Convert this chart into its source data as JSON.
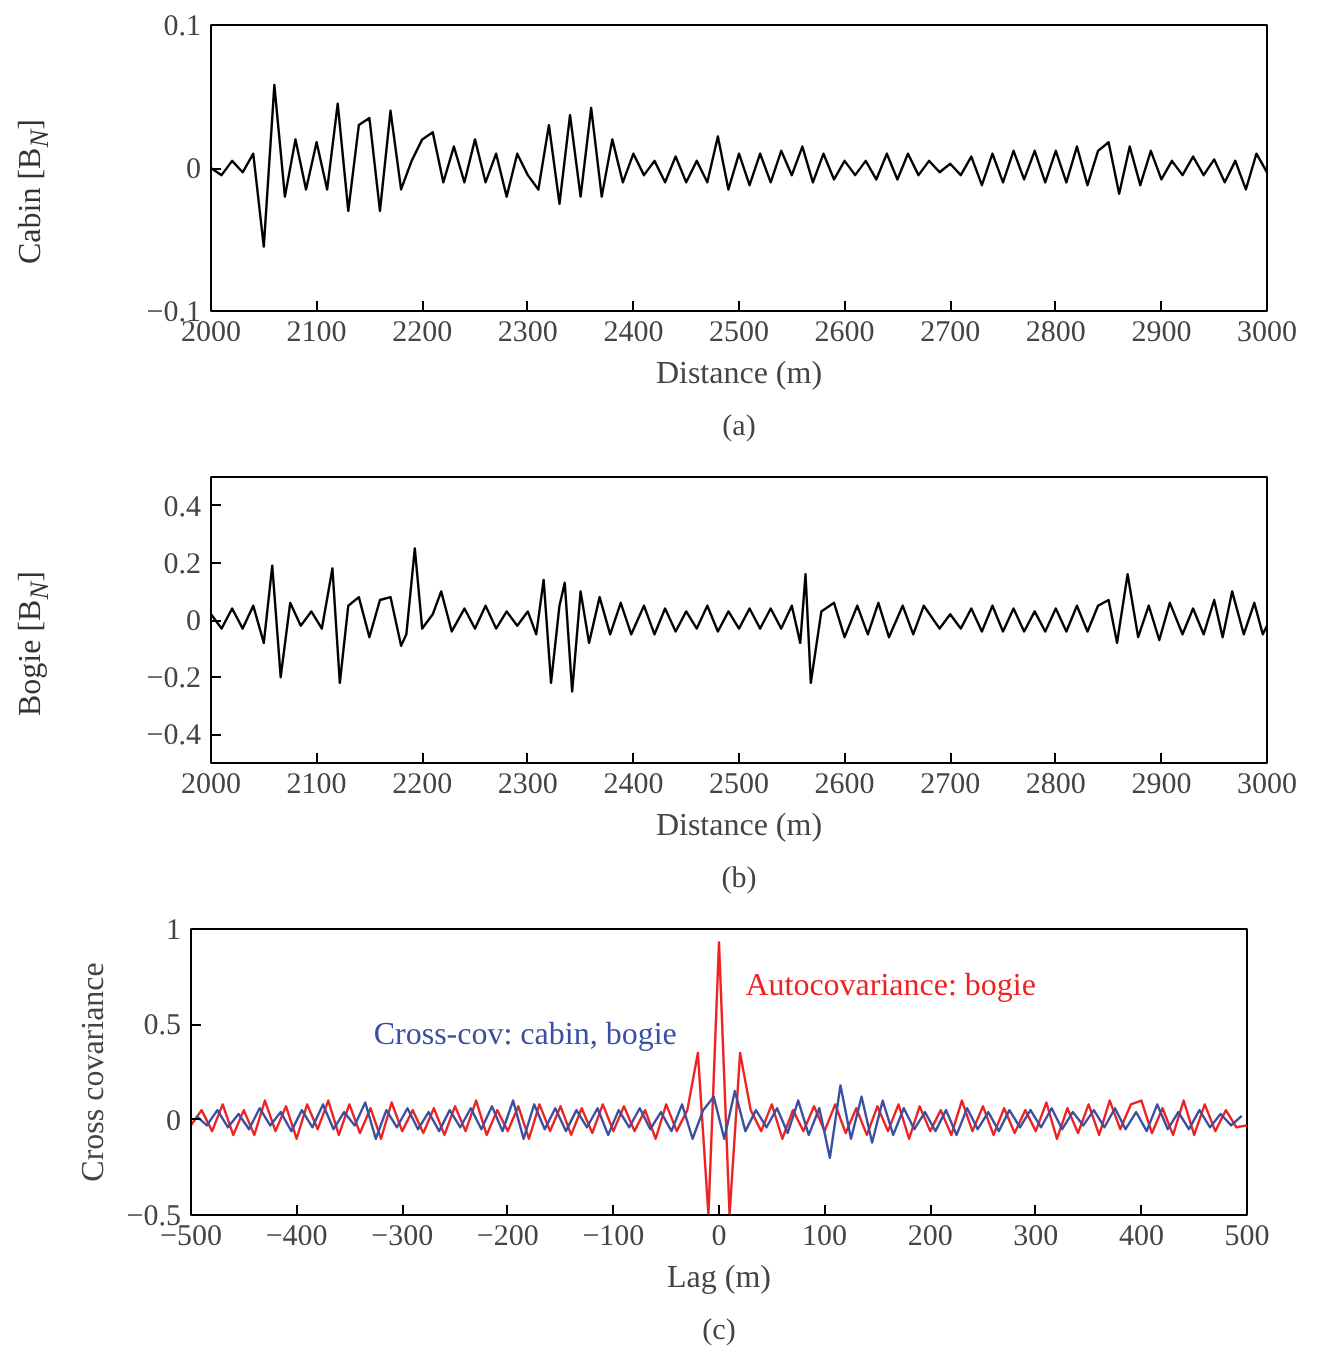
{
  "chart_data": [
    {
      "type": "line",
      "xlabel": "Distance (m)",
      "ylabel": "Cabin [B$_{N}$]",
      "annotations": [
        "(a)"
      ],
      "xlim": [
        2000,
        3000
      ],
      "ylim": [
        -0.1,
        0.1
      ],
      "xticks": [
        2000,
        2100,
        2200,
        2300,
        2400,
        2500,
        2600,
        2700,
        2800,
        2900,
        3000
      ],
      "yticks": [
        {
          "value": -0.1,
          "label": "−0.1"
        },
        0,
        0.1
      ],
      "x": [
        2000,
        2010,
        2020,
        2030,
        2040,
        2050,
        2060,
        2070,
        2080,
        2090,
        2100,
        2110,
        2120,
        2130,
        2140,
        2150,
        2160,
        2170,
        2180,
        2190,
        2200,
        2210,
        2220,
        2230,
        2240,
        2250,
        2260,
        2270,
        2280,
        2290,
        2300,
        2310,
        2320,
        2330,
        2340,
        2350,
        2360,
        2370,
        2380,
        2390,
        2400,
        2410,
        2420,
        2430,
        2440,
        2450,
        2460,
        2470,
        2480,
        2490,
        2500,
        2510,
        2520,
        2530,
        2540,
        2550,
        2560,
        2570,
        2580,
        2590,
        2600,
        2610,
        2620,
        2630,
        2640,
        2650,
        2660,
        2670,
        2680,
        2690,
        2700,
        2710,
        2720,
        2730,
        2740,
        2750,
        2760,
        2770,
        2780,
        2790,
        2800,
        2810,
        2820,
        2830,
        2840,
        2850,
        2860,
        2870,
        2880,
        2890,
        2900,
        2910,
        2920,
        2930,
        2940,
        2950,
        2960,
        2970,
        2980,
        2990,
        3000
      ],
      "series": [
        {
          "color": "#000000",
          "values": [
            0,
            -0.005,
            0.005,
            -0.003,
            0.01,
            -0.055,
            0.058,
            -0.02,
            0.02,
            -0.015,
            0.018,
            -0.015,
            0.045,
            -0.03,
            0.03,
            0.035,
            -0.03,
            0.04,
            -0.015,
            0.005,
            0.02,
            0.025,
            -0.01,
            0.015,
            -0.01,
            0.02,
            -0.01,
            0.01,
            -0.02,
            0.01,
            -0.005,
            -0.015,
            0.03,
            -0.025,
            0.037,
            -0.02,
            0.042,
            -0.02,
            0.02,
            -0.01,
            0.01,
            -0.005,
            0.005,
            -0.01,
            0.008,
            -0.01,
            0.005,
            -0.01,
            0.022,
            -0.015,
            0.01,
            -0.012,
            0.01,
            -0.01,
            0.012,
            -0.005,
            0.015,
            -0.01,
            0.01,
            -0.008,
            0.005,
            -0.005,
            0.005,
            -0.008,
            0.01,
            -0.008,
            0.01,
            -0.005,
            0.005,
            -0.003,
            0.003,
            -0.005,
            0.008,
            -0.012,
            0.01,
            -0.01,
            0.012,
            -0.008,
            0.012,
            -0.01,
            0.012,
            -0.01,
            0.015,
            -0.012,
            0.012,
            0.018,
            -0.018,
            0.015,
            -0.012,
            0.012,
            -0.008,
            0.005,
            -0.005,
            0.008,
            -0.005,
            0.006,
            -0.01,
            0.005,
            -0.015,
            0.01,
            -0.003
          ]
        }
      ]
    },
    {
      "type": "line",
      "xlabel": "Distance (m)",
      "ylabel": "Bogie [B$_{N}$]",
      "annotations": [
        "(b)"
      ],
      "xlim": [
        2000,
        3000
      ],
      "ylim": [
        -0.5,
        0.5
      ],
      "xticks": [
        2000,
        2100,
        2200,
        2300,
        2400,
        2500,
        2600,
        2700,
        2800,
        2900,
        3000
      ],
      "yticks": [
        {
          "value": -0.4,
          "label": "−0.4"
        },
        {
          "value": -0.2,
          "label": "−0.2"
        },
        0,
        0.2,
        0.4
      ],
      "x": [
        2000,
        2010,
        2020,
        2030,
        2040,
        2050,
        2058,
        2066,
        2075,
        2085,
        2095,
        2105,
        2115,
        2122,
        2130,
        2140,
        2150,
        2160,
        2170,
        2180,
        2185,
        2193,
        2200,
        2210,
        2218,
        2228,
        2240,
        2250,
        2260,
        2270,
        2280,
        2290,
        2300,
        2308,
        2315,
        2322,
        2330,
        2335,
        2342,
        2350,
        2358,
        2368,
        2378,
        2388,
        2398,
        2410,
        2420,
        2430,
        2440,
        2450,
        2460,
        2470,
        2480,
        2490,
        2500,
        2510,
        2520,
        2530,
        2540,
        2550,
        2558,
        2563,
        2568,
        2578,
        2590,
        2600,
        2612,
        2622,
        2632,
        2642,
        2655,
        2665,
        2675,
        2690,
        2700,
        2710,
        2720,
        2730,
        2740,
        2750,
        2760,
        2770,
        2780,
        2790,
        2800,
        2810,
        2820,
        2830,
        2840,
        2850,
        2858,
        2868,
        2878,
        2888,
        2898,
        2908,
        2920,
        2930,
        2940,
        2950,
        2958,
        2967,
        2978,
        2988,
        2996,
        3000
      ],
      "series": [
        {
          "color": "#000000",
          "values": [
            0.02,
            -0.03,
            0.04,
            -0.03,
            0.05,
            -0.08,
            0.19,
            -0.2,
            0.06,
            -0.02,
            0.03,
            -0.03,
            0.18,
            -0.22,
            0.05,
            0.08,
            -0.06,
            0.07,
            0.08,
            -0.09,
            -0.05,
            0.25,
            -0.03,
            0.02,
            0.1,
            -0.04,
            0.04,
            -0.03,
            0.05,
            -0.03,
            0.03,
            -0.02,
            0.03,
            -0.05,
            0.14,
            -0.22,
            0.05,
            0.13,
            -0.25,
            0.1,
            -0.08,
            0.08,
            -0.05,
            0.06,
            -0.05,
            0.05,
            -0.05,
            0.04,
            -0.04,
            0.03,
            -0.03,
            0.05,
            -0.04,
            0.03,
            -0.03,
            0.04,
            -0.03,
            0.04,
            -0.03,
            0.05,
            -0.08,
            0.16,
            -0.22,
            0.03,
            0.06,
            -0.06,
            0.05,
            -0.05,
            0.06,
            -0.06,
            0.05,
            -0.05,
            0.05,
            -0.03,
            0.02,
            -0.03,
            0.04,
            -0.04,
            0.05,
            -0.04,
            0.04,
            -0.04,
            0.03,
            -0.04,
            0.04,
            -0.04,
            0.05,
            -0.04,
            0.05,
            0.07,
            -0.08,
            0.16,
            -0.06,
            0.05,
            -0.07,
            0.06,
            -0.05,
            0.04,
            -0.05,
            0.07,
            -0.06,
            0.1,
            -0.05,
            0.06,
            -0.05,
            -0.02
          ]
        }
      ]
    },
    {
      "type": "line",
      "xlabel": "Lag (m)",
      "ylabel": "Cross covariance",
      "annotations": [
        "(c)"
      ],
      "xlim": [
        -500,
        500
      ],
      "ylim": [
        -0.5,
        1
      ],
      "xticks": [
        {
          "value": -500,
          "label": "−500"
        },
        {
          "value": -400,
          "label": "−400"
        },
        {
          "value": -300,
          "label": "−300"
        },
        {
          "value": -200,
          "label": "−200"
        },
        {
          "value": -100,
          "label": "−100"
        },
        0,
        100,
        200,
        300,
        400,
        500
      ],
      "yticks": [
        {
          "value": -0.5,
          "label": "−0.5"
        },
        0,
        0.5,
        1
      ],
      "series": [
        {
          "name": "Autocovariance: bogie",
          "color": "#ee2222",
          "x": [
            -500,
            -490,
            -480,
            -470,
            -460,
            -450,
            -440,
            -430,
            -420,
            -410,
            -400,
            -390,
            -380,
            -370,
            -360,
            -350,
            -340,
            -330,
            -320,
            -310,
            -300,
            -290,
            -280,
            -270,
            -260,
            -250,
            -240,
            -230,
            -220,
            -210,
            -200,
            -190,
            -180,
            -170,
            -160,
            -150,
            -140,
            -130,
            -120,
            -110,
            -100,
            -90,
            -80,
            -70,
            -60,
            -50,
            -40,
            -30,
            -20,
            -10,
            0,
            10,
            20,
            30,
            40,
            50,
            60,
            70,
            80,
            90,
            100,
            110,
            120,
            130,
            140,
            150,
            160,
            170,
            180,
            190,
            200,
            210,
            220,
            230,
            240,
            250,
            260,
            270,
            280,
            290,
            300,
            310,
            320,
            330,
            340,
            350,
            360,
            370,
            380,
            390,
            400,
            410,
            420,
            430,
            440,
            450,
            460,
            470,
            480,
            490,
            500
          ],
          "values": [
            -0.03,
            0.05,
            -0.06,
            0.08,
            -0.08,
            0.05,
            -0.08,
            0.1,
            -0.06,
            0.07,
            -0.1,
            0.08,
            -0.05,
            0.1,
            -0.08,
            0.08,
            -0.07,
            0.06,
            -0.1,
            0.09,
            -0.06,
            0.05,
            -0.07,
            0.06,
            -0.08,
            0.07,
            -0.06,
            0.1,
            -0.08,
            0.05,
            -0.06,
            0.07,
            -0.1,
            0.08,
            -0.06,
            0.07,
            -0.08,
            0.06,
            -0.07,
            0.08,
            -0.06,
            0.07,
            -0.06,
            0.05,
            -0.1,
            0.08,
            -0.06,
            0.05,
            0.35,
            -0.5,
            0.93,
            -0.5,
            0.35,
            0.05,
            -0.06,
            0.08,
            -0.1,
            0.05,
            -0.06,
            0.07,
            -0.06,
            0.08,
            -0.07,
            0.06,
            -0.08,
            0.07,
            -0.06,
            0.08,
            -0.1,
            0.07,
            -0.06,
            0.05,
            -0.08,
            0.1,
            -0.06,
            0.07,
            -0.08,
            0.06,
            -0.07,
            0.05,
            -0.06,
            0.09,
            -0.1,
            0.06,
            -0.07,
            0.08,
            -0.08,
            0.1,
            -0.05,
            0.08,
            0.1,
            -0.07,
            0.06,
            -0.08,
            0.1,
            -0.08,
            0.08,
            -0.06,
            0.05,
            -0.04,
            -0.03
          ]
        },
        {
          "name": "Cross-cov: cabin, bogie",
          "color": "#3a4fa0",
          "x": [
            -495,
            -485,
            -475,
            -465,
            -455,
            -445,
            -435,
            -425,
            -415,
            -405,
            -395,
            -385,
            -375,
            -365,
            -355,
            -345,
            -335,
            -325,
            -315,
            -305,
            -295,
            -285,
            -275,
            -265,
            -255,
            -245,
            -235,
            -225,
            -215,
            -205,
            -195,
            -185,
            -175,
            -165,
            -155,
            -145,
            -135,
            -125,
            -115,
            -105,
            -95,
            -85,
            -75,
            -65,
            -55,
            -45,
            -35,
            -25,
            -15,
            -5,
            5,
            15,
            25,
            35,
            45,
            55,
            65,
            75,
            85,
            95,
            105,
            115,
            125,
            135,
            145,
            155,
            165,
            175,
            185,
            195,
            205,
            215,
            225,
            235,
            245,
            255,
            265,
            275,
            285,
            295,
            305,
            315,
            325,
            335,
            345,
            355,
            365,
            375,
            385,
            395,
            405,
            415,
            425,
            435,
            445,
            455,
            465,
            475,
            485,
            495
          ],
          "values": [
            0.02,
            -0.03,
            0.05,
            -0.04,
            0.03,
            -0.05,
            0.06,
            -0.03,
            0.04,
            -0.06,
            0.05,
            -0.04,
            0.08,
            -0.05,
            0.04,
            -0.03,
            0.09,
            -0.1,
            0.05,
            -0.04,
            0.06,
            -0.05,
            0.04,
            -0.06,
            0.05,
            -0.04,
            0.06,
            -0.05,
            0.07,
            -0.06,
            0.1,
            -0.1,
            0.08,
            -0.05,
            0.06,
            -0.06,
            0.05,
            -0.04,
            0.06,
            -0.08,
            0.05,
            -0.04,
            0.06,
            -0.05,
            0.04,
            -0.06,
            0.08,
            -0.1,
            0.05,
            0.12,
            -0.1,
            0.15,
            -0.06,
            0.05,
            -0.04,
            0.06,
            -0.07,
            0.1,
            -0.08,
            0.06,
            -0.2,
            0.18,
            -0.1,
            0.12,
            -0.12,
            0.1,
            -0.08,
            0.06,
            -0.05,
            0.04,
            -0.06,
            0.05,
            -0.08,
            0.06,
            -0.05,
            0.04,
            -0.06,
            0.05,
            -0.04,
            0.05,
            -0.04,
            0.06,
            -0.05,
            0.04,
            -0.03,
            0.05,
            -0.04,
            0.06,
            -0.05,
            0.04,
            -0.06,
            0.08,
            -0.05,
            0.04,
            -0.05,
            0.05,
            -0.04,
            0.03,
            -0.03,
            0.02
          ]
        }
      ]
    }
  ]
}
